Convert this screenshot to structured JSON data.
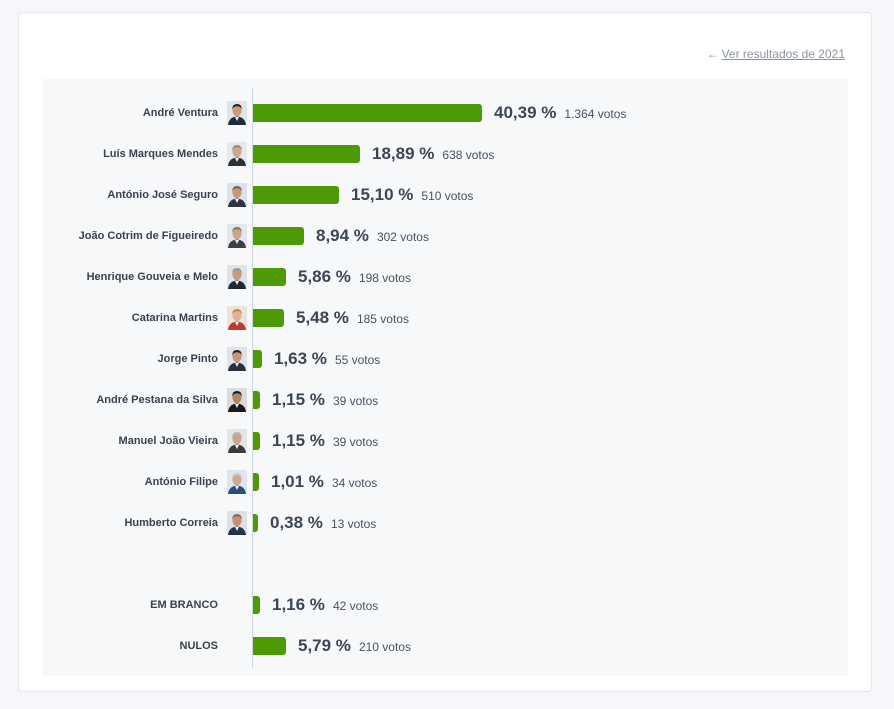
{
  "header": {
    "prev_link_label": "Ver resultados de 2021",
    "prev_link_icon": "arrow-left-icon"
  },
  "colors": {
    "bar": "#4e9a06",
    "accent_link": "#8a94a6"
  },
  "chart_data": {
    "type": "bar",
    "orientation": "horizontal",
    "title": "",
    "xlabel": "",
    "ylabel": "",
    "xlim": [
      0,
      100
    ],
    "grid": false,
    "categories": [
      "André Ventura",
      "Luís Marques Mendes",
      "António José Seguro",
      "João Cotrim de Figueiredo",
      "Henrique Gouveia e Melo",
      "Catarina Martins",
      "Jorge Pinto",
      "André Pestana da Silva",
      "Manuel João Vieira",
      "António Filipe",
      "Humberto Correia",
      "EM BRANCO",
      "NULOS"
    ],
    "rows": [
      {
        "name": "André Ventura",
        "pct": 40.39,
        "pct_label": "40,39 %",
        "votes_label": "1.364 votos",
        "photo": true,
        "skin": "#c99a7c",
        "hair": "#2a2220",
        "suit": "#1f2a3a",
        "bg": "#dfe4ea"
      },
      {
        "name": "Luís Marques Mendes",
        "pct": 18.89,
        "pct_label": "18,89 %",
        "votes_label": "638 votos",
        "photo": true,
        "skin": "#d2a78d",
        "hair": "#8c8c8c",
        "suit": "#2b2f36",
        "bg": "#e6e8eb"
      },
      {
        "name": "António José Seguro",
        "pct": 15.1,
        "pct_label": "15,10 %",
        "votes_label": "510 votos",
        "photo": true,
        "skin": "#c7987e",
        "hair": "#6a6662",
        "suit": "#2c3442",
        "bg": "#dde2e8"
      },
      {
        "name": "João Cotrim de Figueiredo",
        "pct": 8.94,
        "pct_label": "8,94 %",
        "votes_label": "302 votos",
        "photo": true,
        "skin": "#cfa489",
        "hair": "#7b7774",
        "suit": "#3a4048",
        "bg": "#e4e6e9"
      },
      {
        "name": "Henrique Gouveia e Melo",
        "pct": 5.86,
        "pct_label": "5,86 %",
        "votes_label": "198 votos",
        "photo": true,
        "skin": "#c79a80",
        "hair": "#9a9896",
        "suit": "#202838",
        "bg": "#dfe3e8"
      },
      {
        "name": "Catarina Martins",
        "pct": 5.48,
        "pct_label": "5,48 %",
        "votes_label": "185 votos",
        "photo": true,
        "skin": "#e0b49a",
        "hair": "#c98a3c",
        "suit": "#c0392b",
        "bg": "#e8e4e0"
      },
      {
        "name": "Jorge Pinto",
        "pct": 1.63,
        "pct_label": "1,63 %",
        "votes_label": "55 votos",
        "photo": true,
        "skin": "#c4957a",
        "hair": "#2a231f",
        "suit": "#2b2f3a",
        "bg": "#e0e3e7"
      },
      {
        "name": "André Pestana da Silva",
        "pct": 1.15,
        "pct_label": "1,15 %",
        "votes_label": "39 votos",
        "photo": true,
        "skin": "#b58465",
        "hair": "#1c1a18",
        "suit": "#1a1a1a",
        "bg": "#d9dcdf"
      },
      {
        "name": "Manuel João Vieira",
        "pct": 1.15,
        "pct_label": "1,15 %",
        "votes_label": "39 votos",
        "photo": true,
        "skin": "#cda389",
        "hair": "#b9b5b0",
        "suit": "#3b3b3b",
        "bg": "#e5e5e5"
      },
      {
        "name": "António Filipe",
        "pct": 1.01,
        "pct_label": "1,01 %",
        "votes_label": "34 votos",
        "photo": true,
        "skin": "#d0a990",
        "hair": "#c9c9c9",
        "suit": "#2d4e7a",
        "bg": "#dfe5ec"
      },
      {
        "name": "Humberto Correia",
        "pct": 0.38,
        "pct_label": "0,38 %",
        "votes_label": "13 votos",
        "photo": true,
        "skin": "#c98f73",
        "hair": "#7a6f66",
        "suit": "#243250",
        "bg": "#dde1e6"
      },
      {
        "name": "EM BRANCO",
        "pct": 1.16,
        "pct_label": "1,16 %",
        "votes_label": "42 votos",
        "photo": false
      },
      {
        "name": "NULOS",
        "pct": 5.79,
        "pct_label": "5,79 %",
        "votes_label": "210 votos",
        "photo": false
      }
    ]
  }
}
